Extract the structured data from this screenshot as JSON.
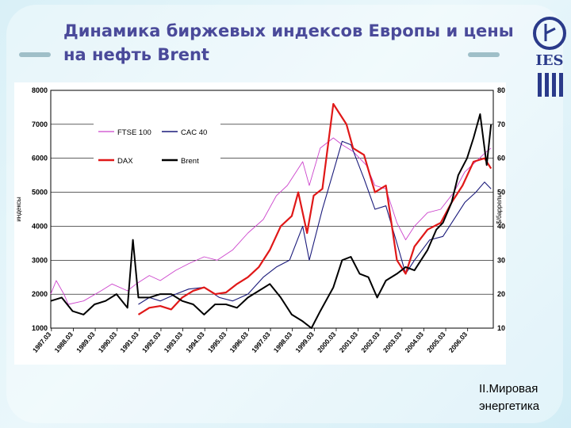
{
  "slide": {
    "title": "Динамика биржевых индексов Европы и цены на нефть Brent",
    "footer_line1": "II.Мировая",
    "footer_line2": "энергетика",
    "logo_text": "IES"
  },
  "chart_data": {
    "type": "line",
    "title": "",
    "xlabel": "",
    "ylabel_left": "индексы",
    "ylabel_right": "$/баррель",
    "ylim_left": [
      1000,
      8000
    ],
    "ylim_right": [
      10,
      80
    ],
    "yticks_left": [
      "1000",
      "2000",
      "3000",
      "4000",
      "5000",
      "6000",
      "7000",
      "8000"
    ],
    "yticks_right": [
      "10",
      "20",
      "30",
      "40",
      "50",
      "60",
      "70",
      "80"
    ],
    "xticks": [
      "1987.03",
      "1988.03",
      "1989.03",
      "1990.03",
      "1991.03",
      "1992.03",
      "1993.03",
      "1994.03",
      "1995.03",
      "1996.03",
      "1997.03",
      "1998.03",
      "1999.03",
      "2000.03",
      "2001.03",
      "2002.03",
      "2003.03",
      "2004.03",
      "2005.03",
      "2006.03"
    ],
    "grid": "horizontal",
    "legend": "top-left inside plot",
    "series": [
      {
        "name": "FTSE 100",
        "color": "#cc44cc",
        "axis": "left",
        "x": [
          1987.0,
          1987.25,
          1987.6,
          1987.8,
          1988.5,
          1989.3,
          1989.8,
          1990.5,
          1990.9,
          1991.5,
          1992.0,
          1992.7,
          1993.3,
          1994.0,
          1994.6,
          1995.3,
          1996.0,
          1996.7,
          1997.3,
          1997.8,
          1998.5,
          1998.8,
          1999.3,
          1999.9,
          2000.3,
          2000.8,
          2001.4,
          2001.8,
          2002.3,
          2002.8,
          2003.2,
          2003.6,
          2004.2,
          2004.8,
          2005.4,
          2005.9,
          2006.4,
          2006.9,
          2007.1
        ],
        "y": [
          2000,
          2400,
          2000,
          1700,
          1800,
          2100,
          2300,
          2100,
          2300,
          2550,
          2400,
          2700,
          2900,
          3100,
          3000,
          3300,
          3800,
          4200,
          4900,
          5200,
          5900,
          5200,
          6300,
          6600,
          6400,
          6200,
          5800,
          5200,
          5100,
          4100,
          3600,
          4000,
          4400,
          4500,
          5000,
          5600,
          5900,
          6200,
          6300
        ]
      },
      {
        "name": "CAC 40",
        "color": "#1a1a7a",
        "axis": "left",
        "x": [
          1991.0,
          1991.5,
          1992.0,
          1992.7,
          1993.3,
          1994.0,
          1994.7,
          1995.3,
          1996.0,
          1996.7,
          1997.3,
          1997.9,
          1998.5,
          1998.8,
          1999.4,
          1999.9,
          2000.3,
          2000.7,
          2001.3,
          2001.8,
          2002.3,
          2002.8,
          2003.2,
          2003.6,
          2004.3,
          2004.9,
          2005.4,
          2005.9,
          2006.4,
          2006.8,
          2007.1
        ],
        "y": [
          1700,
          1900,
          1800,
          2000,
          2150,
          2200,
          1900,
          1800,
          2000,
          2500,
          2800,
          3000,
          4000,
          3000,
          4500,
          5600,
          6500,
          6400,
          5400,
          4500,
          4600,
          3500,
          2600,
          3000,
          3600,
          3700,
          4200,
          4700,
          5000,
          5300,
          5100
        ]
      },
      {
        "name": "DAX",
        "color": "#e01818",
        "axis": "left",
        "x": [
          1991.0,
          1991.5,
          1992.0,
          1992.5,
          1993.0,
          1993.5,
          1994.0,
          1994.5,
          1995.0,
          1995.5,
          1996.0,
          1996.5,
          1997.0,
          1997.5,
          1998.0,
          1998.3,
          1998.7,
          1999.0,
          1999.4,
          1999.9,
          2000.2,
          2000.5,
          2000.8,
          2001.3,
          2001.8,
          2002.3,
          2002.8,
          2003.2,
          2003.6,
          2004.2,
          2004.8,
          2005.3,
          2005.8,
          2006.3,
          2006.8,
          2007.1
        ],
        "y": [
          1400,
          1600,
          1650,
          1550,
          1900,
          2100,
          2200,
          2000,
          2050,
          2300,
          2500,
          2800,
          3300,
          4000,
          4300,
          5000,
          3800,
          4900,
          5100,
          7600,
          7300,
          7000,
          6300,
          6100,
          5000,
          5200,
          3000,
          2600,
          3400,
          3900,
          4100,
          4700,
          5200,
          5900,
          6000,
          5700
        ]
      },
      {
        "name": "Brent",
        "color": "#000000",
        "axis": "right",
        "x": [
          1987.0,
          1987.5,
          1988.0,
          1988.5,
          1989.0,
          1989.5,
          1990.0,
          1990.5,
          1990.75,
          1991.0,
          1991.5,
          1992.0,
          1992.5,
          1993.0,
          1993.5,
          1994.0,
          1994.5,
          1995.0,
          1995.5,
          1996.0,
          1996.5,
          1997.0,
          1997.5,
          1998.0,
          1998.5,
          1998.9,
          1999.3,
          1999.9,
          2000.3,
          2000.7,
          2001.1,
          2001.5,
          2001.9,
          2002.3,
          2002.8,
          2003.2,
          2003.6,
          2004.2,
          2004.6,
          2004.9,
          2005.3,
          2005.6,
          2006.0,
          2006.3,
          2006.6,
          2006.9,
          2007.1
        ],
        "y": [
          18,
          19,
          15,
          14,
          17,
          18,
          20,
          16,
          36,
          19,
          19,
          20,
          20,
          18,
          17,
          14,
          17,
          17,
          16,
          19,
          21,
          23,
          19,
          14,
          12,
          10,
          15,
          22,
          30,
          31,
          26,
          25,
          19,
          24,
          26,
          28,
          27,
          33,
          39,
          41,
          47,
          55,
          60,
          66,
          73,
          58,
          70
        ]
      }
    ]
  }
}
